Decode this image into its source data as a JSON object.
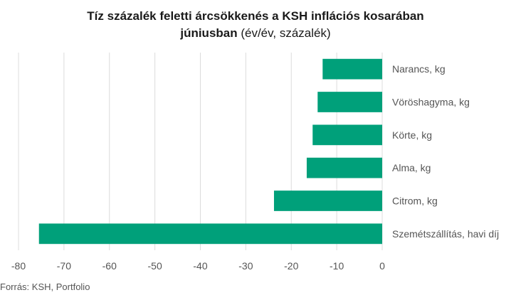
{
  "chart_data": {
    "type": "bar",
    "orientation": "horizontal",
    "title_line1": "Tíz százalék feletti árcsökkenés a KSH inflációs kosarában",
    "title_line2_bold": "júniusban",
    "title_line2_rest": " (év/év, százalék)",
    "categories": [
      "Narancs, kg",
      "Vöröshagyma, kg",
      "Körte, kg",
      "Alma, kg",
      "Citrom, kg",
      "Szemétszállítás, havi díj"
    ],
    "values": [
      -13.1,
      -14.2,
      -15.3,
      -16.6,
      -23.8,
      -75.5
    ],
    "xlim": [
      -80,
      0
    ],
    "xticks": [
      -80,
      -70,
      -60,
      -50,
      -40,
      -30,
      -20,
      -10,
      0
    ],
    "grid": true,
    "bar_color": "#00a07a"
  },
  "source": "Forrás: KSH, Portfolio"
}
